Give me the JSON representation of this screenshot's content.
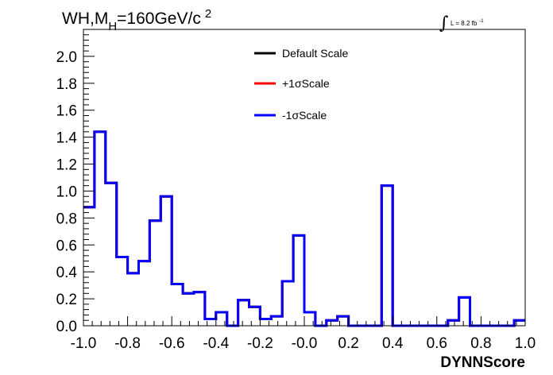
{
  "chart_data": {
    "type": "line",
    "title": {
      "main": "WH,M",
      "subscript": "H",
      "tail": "=160GeV/c",
      "superscript": "2"
    },
    "luminosity": {
      "text": "L = 8.2 fb",
      "superscript": "-1"
    },
    "xlabel": "DYNNScore",
    "ylabel": "",
    "xlim": [
      -1.0,
      1.0
    ],
    "ylim": [
      0.0,
      2.2
    ],
    "x_ticks": [
      "-1.0",
      "-0.8",
      "-0.6",
      "-0.4",
      "-0.2",
      "-0.0",
      "0.2",
      "0.4",
      "0.6",
      "0.8",
      "1.0"
    ],
    "y_ticks": [
      "0.0",
      "0.2",
      "0.4",
      "0.6",
      "0.8",
      "1.0",
      "1.2",
      "1.4",
      "1.6",
      "1.8",
      "2.0"
    ],
    "legend_position": "top-center",
    "bin_edges": [
      -1.0,
      -0.95,
      -0.9,
      -0.85,
      -0.8,
      -0.75,
      -0.7,
      -0.65,
      -0.6,
      -0.55,
      -0.5,
      -0.45,
      -0.4,
      -0.35,
      -0.3,
      -0.25,
      -0.2,
      -0.15,
      -0.1,
      -0.05,
      0.0,
      0.05,
      0.1,
      0.15,
      0.2,
      0.25,
      0.3,
      0.35,
      0.4,
      0.45,
      0.5,
      0.55,
      0.6,
      0.65,
      0.7,
      0.75,
      0.8,
      0.85,
      0.9,
      0.95,
      1.0
    ],
    "series": [
      {
        "name": "Default Scale",
        "color": "#000000",
        "values": [
          0.88,
          1.44,
          1.06,
          0.51,
          0.39,
          0.48,
          0.78,
          0.96,
          0.31,
          0.24,
          0.25,
          0.05,
          0.1,
          0.0,
          0.19,
          0.14,
          0.05,
          0.07,
          0.33,
          0.67,
          0.1,
          0.0,
          0.04,
          0.07,
          0.0,
          0.0,
          0.0,
          1.04,
          0.0,
          0.0,
          0.0,
          0.0,
          0.0,
          0.04,
          0.21,
          0.0,
          0.0,
          0.0,
          0.0,
          0.04
        ]
      },
      {
        "name": "+1σScale",
        "color": "#ff0000",
        "values": [
          0.88,
          1.44,
          1.06,
          0.51,
          0.39,
          0.48,
          0.78,
          0.96,
          0.31,
          0.24,
          0.25,
          0.05,
          0.1,
          0.0,
          0.19,
          0.14,
          0.05,
          0.07,
          0.33,
          0.67,
          0.1,
          0.0,
          0.04,
          0.07,
          0.0,
          0.0,
          0.0,
          1.04,
          0.0,
          0.0,
          0.0,
          0.0,
          0.0,
          0.04,
          0.21,
          0.0,
          0.0,
          0.0,
          0.0,
          0.04
        ]
      },
      {
        "name": "-1σScale",
        "color": "#0000ff",
        "values": [
          0.88,
          1.44,
          1.06,
          0.51,
          0.39,
          0.48,
          0.78,
          0.96,
          0.31,
          0.24,
          0.25,
          0.05,
          0.1,
          0.0,
          0.19,
          0.14,
          0.05,
          0.07,
          0.33,
          0.67,
          0.1,
          0.0,
          0.04,
          0.07,
          0.0,
          0.0,
          0.0,
          1.04,
          0.0,
          0.0,
          0.0,
          0.0,
          0.0,
          0.04,
          0.21,
          0.0,
          0.0,
          0.0,
          0.0,
          0.04
        ]
      }
    ]
  }
}
